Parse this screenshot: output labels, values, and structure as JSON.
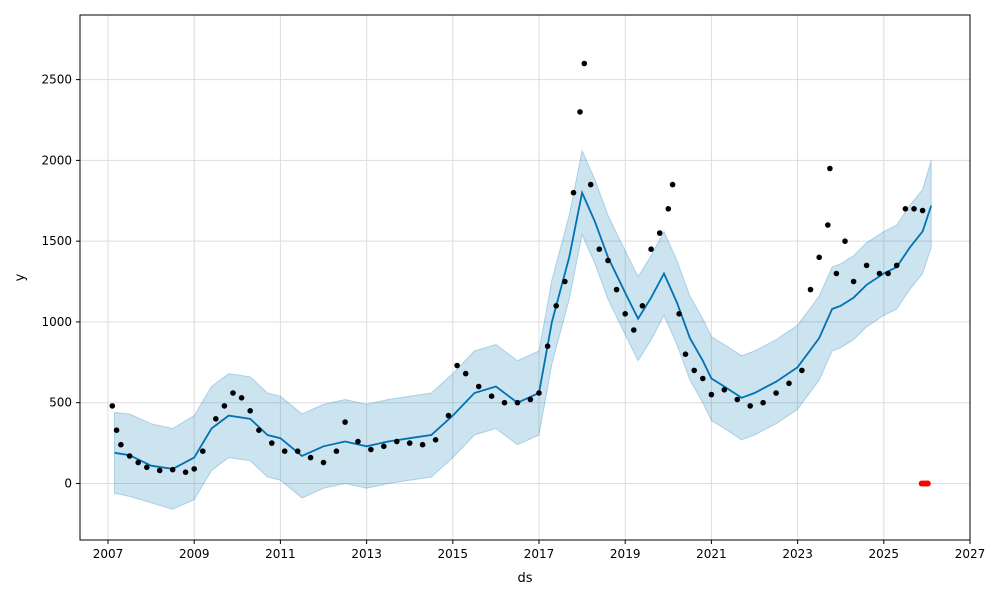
{
  "chart_data": {
    "type": "line",
    "xlabel": "ds",
    "ylabel": "y",
    "xlim": [
      2006.35,
      2027.0
    ],
    "ylim": [
      -350,
      2900
    ],
    "x_ticks": [
      2007,
      2009,
      2011,
      2013,
      2015,
      2017,
      2019,
      2021,
      2023,
      2025,
      2027
    ],
    "y_ticks": [
      0,
      500,
      1000,
      1500,
      2000,
      2500
    ],
    "grid": true,
    "legend": "none",
    "colors": {
      "forecast": "#0072B2",
      "band": "#0072B2",
      "observed": "#000000",
      "anomaly": "#ff0000"
    },
    "forecast": {
      "x": [
        2007.15,
        2007.5,
        2008.0,
        2008.5,
        2009.0,
        2009.4,
        2009.8,
        2010.3,
        2010.7,
        2011.0,
        2011.5,
        2012.0,
        2012.5,
        2013.0,
        2013.5,
        2014.0,
        2014.5,
        2015.0,
        2015.5,
        2016.0,
        2016.5,
        2017.0,
        2017.3,
        2017.7,
        2018.0,
        2018.3,
        2018.6,
        2019.0,
        2019.3,
        2019.6,
        2019.9,
        2020.2,
        2020.5,
        2020.8,
        2021.0,
        2021.3,
        2021.7,
        2022.0,
        2022.5,
        2023.0,
        2023.5,
        2023.8,
        2024.0,
        2024.3,
        2024.6,
        2025.0,
        2025.3,
        2025.6,
        2025.9,
        2026.1
      ],
      "yhat": [
        190,
        175,
        110,
        90,
        160,
        340,
        420,
        400,
        300,
        280,
        170,
        230,
        260,
        230,
        260,
        280,
        300,
        420,
        560,
        600,
        500,
        560,
        1000,
        1400,
        1800,
        1620,
        1400,
        1180,
        1020,
        1150,
        1300,
        1120,
        900,
        760,
        650,
        600,
        530,
        560,
        630,
        720,
        900,
        1080,
        1100,
        1150,
        1230,
        1300,
        1340,
        1460,
        1560,
        1720
      ],
      "lower": [
        -60,
        -80,
        -120,
        -160,
        -100,
        80,
        160,
        140,
        40,
        20,
        -90,
        -30,
        0,
        -30,
        0,
        20,
        40,
        160,
        300,
        340,
        240,
        300,
        740,
        1140,
        1540,
        1360,
        1140,
        920,
        760,
        890,
        1040,
        860,
        640,
        500,
        390,
        340,
        270,
        300,
        370,
        460,
        640,
        820,
        840,
        890,
        970,
        1040,
        1080,
        1200,
        1300,
        1460
      ],
      "upper": [
        440,
        430,
        370,
        340,
        420,
        600,
        680,
        660,
        560,
        540,
        430,
        490,
        520,
        490,
        520,
        540,
        560,
        680,
        820,
        860,
        760,
        820,
        1260,
        1660,
        2060,
        1880,
        1660,
        1440,
        1280,
        1410,
        1560,
        1380,
        1160,
        1020,
        910,
        860,
        790,
        820,
        890,
        980,
        1160,
        1340,
        1360,
        1410,
        1490,
        1560,
        1600,
        1720,
        1820,
        2000
      ]
    },
    "observed": {
      "x": [
        2007.1,
        2007.2,
        2007.3,
        2007.5,
        2007.7,
        2007.9,
        2008.2,
        2008.5,
        2008.8,
        2009.0,
        2009.2,
        2009.5,
        2009.7,
        2009.9,
        2010.1,
        2010.3,
        2010.5,
        2010.8,
        2011.1,
        2011.4,
        2011.7,
        2012.0,
        2012.3,
        2012.5,
        2012.8,
        2013.1,
        2013.4,
        2013.7,
        2014.0,
        2014.3,
        2014.6,
        2014.9,
        2015.1,
        2015.3,
        2015.6,
        2015.9,
        2016.2,
        2016.5,
        2016.8,
        2017.0,
        2017.2,
        2017.4,
        2017.6,
        2017.8,
        2017.95,
        2018.05,
        2018.2,
        2018.4,
        2018.6,
        2018.8,
        2019.0,
        2019.2,
        2019.4,
        2019.6,
        2019.8,
        2020.0,
        2020.1,
        2020.25,
        2020.4,
        2020.6,
        2020.8,
        2021.0,
        2021.3,
        2021.6,
        2021.9,
        2022.2,
        2022.5,
        2022.8,
        2023.1,
        2023.3,
        2023.5,
        2023.7,
        2023.75,
        2023.9,
        2024.1,
        2024.3,
        2024.6,
        2024.9,
        2025.1,
        2025.3,
        2025.5,
        2025.7,
        2025.9
      ],
      "y": [
        480,
        330,
        240,
        170,
        130,
        100,
        80,
        85,
        70,
        90,
        200,
        400,
        480,
        560,
        530,
        450,
        330,
        250,
        200,
        200,
        160,
        130,
        200,
        380,
        260,
        210,
        230,
        260,
        250,
        240,
        270,
        420,
        730,
        680,
        600,
        540,
        500,
        500,
        520,
        560,
        850,
        1100,
        1250,
        1800,
        2300,
        2600,
        1850,
        1450,
        1380,
        1200,
        1050,
        950,
        1100,
        1450,
        1550,
        1700,
        1850,
        1050,
        800,
        700,
        650,
        550,
        580,
        520,
        480,
        500,
        560,
        620,
        700,
        1200,
        1400,
        1600,
        1950,
        1300,
        1500,
        1250,
        1350,
        1300,
        1300,
        1350,
        1700,
        1700,
        1690
      ]
    },
    "anomalies": {
      "x": [
        2025.88,
        2025.93,
        2025.98,
        2026.02
      ],
      "y": [
        0,
        0,
        0,
        0
      ]
    }
  }
}
